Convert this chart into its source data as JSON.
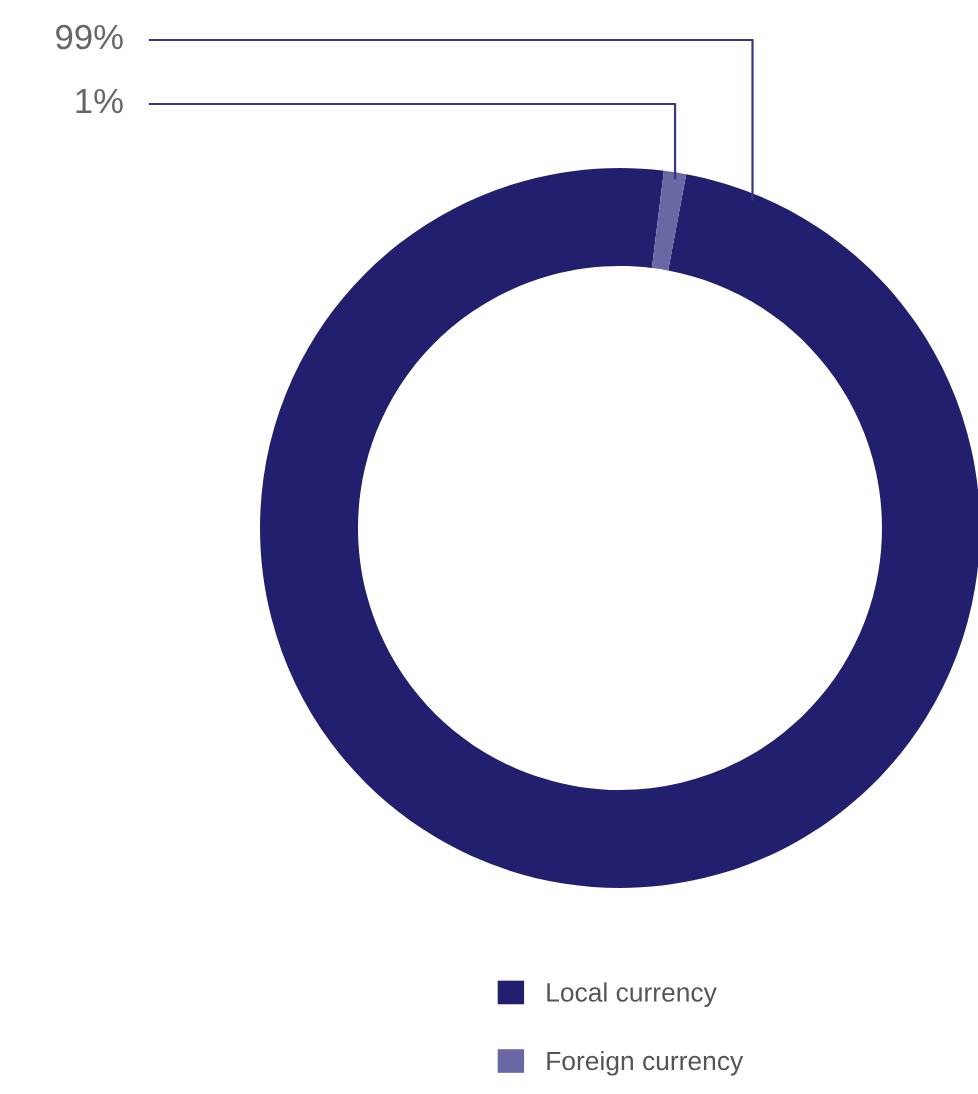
{
  "chart_data": {
    "type": "donut",
    "categories": [
      "Local currency",
      "Foreign currency"
    ],
    "values": [
      99,
      1
    ],
    "colors": [
      "#221f6e",
      "#6a67a5"
    ],
    "value_labels": [
      "99%",
      "1%"
    ],
    "legend": "bottom"
  }
}
